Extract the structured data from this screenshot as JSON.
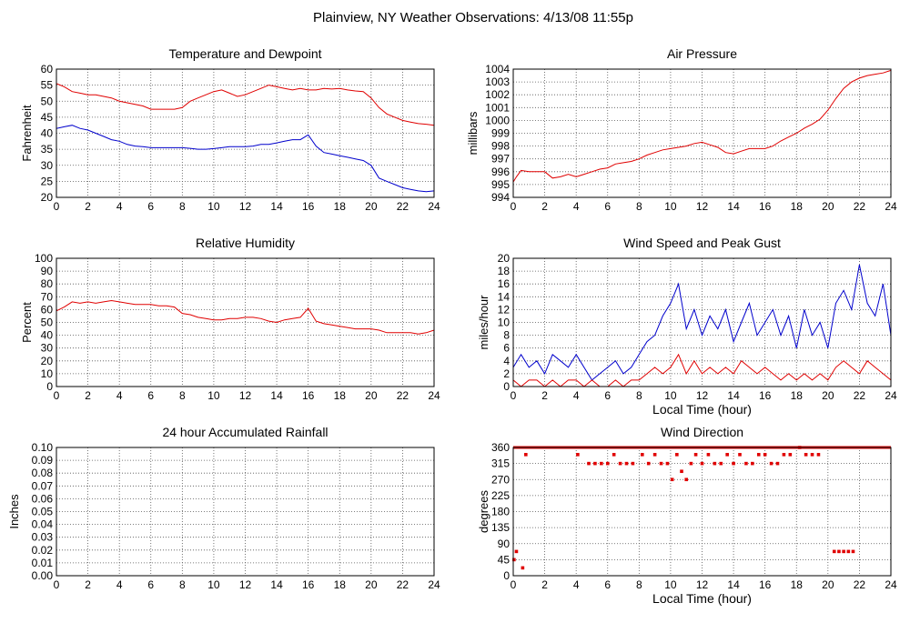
{
  "page": {
    "title": "Plainview, NY Weather Observations: 4/13/08 11:55p"
  },
  "colors": {
    "red": "#e00000",
    "blue": "#0000cc",
    "grid": "#555555",
    "frame": "#000000"
  },
  "chart_data": [
    {
      "id": "temp",
      "type": "line",
      "title": "Temperature and Dewpoint",
      "xlabel": "",
      "ylabel": "Fahrenheit",
      "xlim": [
        0,
        24
      ],
      "ylim": [
        20,
        60
      ],
      "x_ticks": [
        "0",
        "2",
        "4",
        "6",
        "8",
        "10",
        "12",
        "14",
        "16",
        "18",
        "20",
        "22",
        "24"
      ],
      "y_ticks": [
        "20",
        "25",
        "30",
        "35",
        "40",
        "45",
        "50",
        "55",
        "60"
      ],
      "grid": true,
      "series": [
        {
          "color": "red",
          "x": [
            0,
            0.5,
            1,
            1.5,
            2,
            2.5,
            3,
            3.5,
            4,
            4.5,
            5,
            5.5,
            6,
            6.5,
            7,
            7.5,
            8,
            8.5,
            9,
            9.5,
            10,
            10.5,
            11,
            11.5,
            12,
            12.5,
            13,
            13.5,
            14,
            14.5,
            15,
            15.5,
            16,
            16.5,
            17,
            17.5,
            18,
            18.5,
            19,
            19.5,
            20,
            20.5,
            21,
            21.5,
            22,
            22.5,
            23,
            23.5,
            24
          ],
          "values": [
            55.5,
            54.5,
            53,
            52.5,
            52,
            52,
            51.5,
            51,
            50,
            49.5,
            49,
            48.5,
            47.5,
            47.5,
            47.5,
            47.5,
            48,
            50,
            51,
            52,
            53,
            53.5,
            52.5,
            51.5,
            52,
            53,
            54,
            55,
            54.5,
            54,
            53.5,
            54,
            53.5,
            53.5,
            54,
            53.8,
            54,
            53.5,
            53.2,
            53,
            51,
            48,
            46,
            45,
            44,
            43.5,
            43,
            42.8,
            42.5
          ]
        },
        {
          "color": "blue",
          "x": [
            0,
            0.5,
            1,
            1.5,
            2,
            2.5,
            3,
            3.5,
            4,
            4.5,
            5,
            5.5,
            6,
            6.5,
            7,
            7.5,
            8,
            8.5,
            9,
            9.5,
            10,
            10.5,
            11,
            11.5,
            12,
            12.5,
            13,
            13.5,
            14,
            14.5,
            15,
            15.5,
            16,
            16.5,
            17,
            17.5,
            18,
            18.5,
            19,
            19.5,
            20,
            20.5,
            21,
            21.5,
            22,
            22.5,
            23,
            23.5,
            24
          ],
          "values": [
            41.5,
            42,
            42.5,
            41.5,
            41,
            40,
            39,
            38,
            37.5,
            36.5,
            36,
            35.8,
            35.5,
            35.5,
            35.5,
            35.5,
            35.5,
            35.3,
            35,
            35,
            35.2,
            35.5,
            35.8,
            35.8,
            35.8,
            36,
            36.5,
            36.5,
            37,
            37.5,
            38,
            38,
            39.5,
            36,
            34,
            33.5,
            33,
            32.5,
            32,
            31.5,
            30,
            26,
            25,
            24,
            23,
            22.5,
            22,
            21.8,
            22
          ]
        }
      ]
    },
    {
      "id": "pressure",
      "type": "line",
      "title": "Air Pressure",
      "xlabel": "",
      "ylabel": "millibars",
      "xlim": [
        0,
        24
      ],
      "ylim": [
        994,
        1004
      ],
      "x_ticks": [
        "0",
        "2",
        "4",
        "6",
        "8",
        "10",
        "12",
        "14",
        "16",
        "18",
        "20",
        "22",
        "24"
      ],
      "y_ticks": [
        "994",
        "995",
        "996",
        "997",
        "998",
        "999",
        "1000",
        "1001",
        "1002",
        "1003",
        "1004"
      ],
      "grid": true,
      "series": [
        {
          "color": "red",
          "x": [
            0,
            0.2,
            0.5,
            1,
            1.5,
            2,
            2.5,
            3,
            3.5,
            4,
            4.5,
            5,
            5.5,
            6,
            6.5,
            7,
            7.5,
            8,
            8.5,
            9,
            9.5,
            10,
            10.5,
            11,
            11.5,
            12,
            12.5,
            13,
            13.5,
            14,
            14.5,
            15,
            15.5,
            16,
            16.5,
            17,
            17.5,
            18,
            18.5,
            19,
            19.5,
            20,
            20.5,
            21,
            21.5,
            22,
            22.5,
            23,
            23.5,
            24
          ],
          "values": [
            995.2,
            995.6,
            996.1,
            996,
            996,
            996,
            995.5,
            995.6,
            995.8,
            995.6,
            995.8,
            996,
            996.2,
            996.3,
            996.6,
            996.7,
            996.8,
            997,
            997.3,
            997.5,
            997.7,
            997.8,
            997.9,
            998,
            998.2,
            998.3,
            998.1,
            997.9,
            997.5,
            997.4,
            997.6,
            997.8,
            997.8,
            997.8,
            998,
            998.4,
            998.7,
            999,
            999.4,
            999.7,
            1000.1,
            1000.8,
            1001.7,
            1002.5,
            1003,
            1003.3,
            1003.5,
            1003.6,
            1003.7,
            1003.9
          ]
        }
      ]
    },
    {
      "id": "humidity",
      "type": "line",
      "title": "Relative Humidity",
      "xlabel": "",
      "ylabel": "Percent",
      "xlim": [
        0,
        24
      ],
      "ylim": [
        0,
        100
      ],
      "x_ticks": [
        "0",
        "2",
        "4",
        "6",
        "8",
        "10",
        "12",
        "14",
        "16",
        "18",
        "20",
        "22",
        "24"
      ],
      "y_ticks": [
        "0",
        "10",
        "20",
        "30",
        "40",
        "50",
        "60",
        "70",
        "80",
        "90",
        "100"
      ],
      "grid": true,
      "series": [
        {
          "color": "red",
          "x": [
            0,
            0.5,
            1,
            1.5,
            2,
            2.5,
            3,
            3.5,
            4,
            4.5,
            5,
            5.5,
            6,
            6.5,
            7,
            7.5,
            8,
            8.5,
            9,
            9.5,
            10,
            10.5,
            11,
            11.5,
            12,
            12.5,
            13,
            13.5,
            14,
            14.5,
            15,
            15.5,
            16,
            16.5,
            17,
            17.5,
            18,
            18.5,
            19,
            19.5,
            20,
            20.5,
            21,
            21.5,
            22,
            22.5,
            23,
            23.5,
            24
          ],
          "values": [
            59,
            62,
            66,
            65,
            66,
            65,
            66,
            67,
            66,
            65,
            64,
            64,
            64,
            63,
            63,
            62,
            57,
            56,
            54,
            53,
            52,
            52,
            53,
            53,
            54,
            54,
            53,
            51,
            50,
            52,
            53,
            54,
            61,
            51,
            49,
            48,
            47,
            46,
            45,
            45,
            45,
            44,
            42,
            42,
            42,
            42,
            41,
            42,
            44
          ]
        }
      ]
    },
    {
      "id": "wind",
      "type": "line",
      "title": "Wind Speed and Peak Gust",
      "xlabel": "Local Time (hour)",
      "ylabel": "miles/hour",
      "xlim": [
        0,
        24
      ],
      "ylim": [
        0,
        20
      ],
      "x_ticks": [
        "0",
        "2",
        "4",
        "6",
        "8",
        "10",
        "12",
        "14",
        "16",
        "18",
        "20",
        "22",
        "24"
      ],
      "y_ticks": [
        "0",
        "2",
        "4",
        "6",
        "8",
        "10",
        "12",
        "14",
        "16",
        "18",
        "20"
      ],
      "grid": true,
      "series": [
        {
          "color": "blue",
          "x": [
            0,
            0.5,
            1,
            1.5,
            2,
            2.5,
            3,
            3.5,
            4,
            4.5,
            5,
            5.5,
            6,
            6.5,
            7,
            7.5,
            8,
            8.5,
            9,
            9.5,
            10,
            10.5,
            11,
            11.5,
            12,
            12.5,
            13,
            13.5,
            14,
            14.5,
            15,
            15.5,
            16,
            16.5,
            17,
            17.5,
            18,
            18.5,
            19,
            19.5,
            20,
            20.5,
            21,
            21.5,
            22,
            22.5,
            23,
            23.5,
            24
          ],
          "values": [
            3,
            5,
            3,
            4,
            2,
            5,
            4,
            3,
            5,
            3,
            1,
            2,
            3,
            4,
            2,
            3,
            5,
            7,
            8,
            11,
            13,
            16,
            9,
            12,
            8,
            11,
            9,
            12,
            7,
            10,
            13,
            8,
            10,
            12,
            8,
            11,
            6,
            12,
            8,
            10,
            6,
            13,
            15,
            12,
            19,
            13,
            11,
            16,
            8
          ]
        },
        {
          "color": "red",
          "x": [
            0,
            0.5,
            1,
            1.5,
            2,
            2.5,
            3,
            3.5,
            4,
            4.5,
            5,
            5.5,
            6,
            6.5,
            7,
            7.5,
            8,
            8.5,
            9,
            9.5,
            10,
            10.5,
            11,
            11.5,
            12,
            12.5,
            13,
            13.5,
            14,
            14.5,
            15,
            15.5,
            16,
            16.5,
            17,
            17.5,
            18,
            18.5,
            19,
            19.5,
            20,
            20.5,
            21,
            21.5,
            22,
            22.5,
            23,
            23.5,
            24
          ],
          "values": [
            1,
            0,
            1,
            1,
            0,
            1,
            0,
            1,
            1,
            0,
            1,
            0,
            0,
            1,
            0,
            1,
            1,
            2,
            3,
            2,
            3,
            5,
            2,
            4,
            2,
            3,
            2,
            3,
            2,
            4,
            3,
            2,
            3,
            2,
            1,
            2,
            1,
            2,
            1,
            2,
            1,
            3,
            4,
            3,
            2,
            4,
            3,
            2,
            1
          ]
        }
      ]
    },
    {
      "id": "rain",
      "type": "line",
      "title": "24 hour Accumulated Rainfall",
      "xlabel": "",
      "ylabel": "Inches",
      "xlim": [
        0,
        24
      ],
      "ylim": [
        0,
        0.1
      ],
      "x_ticks": [
        "0",
        "2",
        "4",
        "6",
        "8",
        "10",
        "12",
        "14",
        "16",
        "18",
        "20",
        "22",
        "24"
      ],
      "y_ticks": [
        "0.00",
        "0.01",
        "0.02",
        "0.03",
        "0.04",
        "0.05",
        "0.06",
        "0.07",
        "0.08",
        "0.09",
        "0.10"
      ],
      "grid": true,
      "series": [
        {
          "color": "red",
          "x": [
            0,
            24
          ],
          "values": [
            0,
            0
          ]
        }
      ]
    },
    {
      "id": "direction",
      "type": "scatter",
      "title": "Wind Direction",
      "xlabel": "Local Time (hour)",
      "ylabel": "degrees",
      "xlim": [
        0,
        24
      ],
      "ylim": [
        0,
        360
      ],
      "x_ticks": [
        "0",
        "2",
        "4",
        "6",
        "8",
        "10",
        "12",
        "14",
        "16",
        "18",
        "20",
        "22",
        "24"
      ],
      "y_ticks": [
        "0",
        "45",
        "90",
        "135",
        "180",
        "225",
        "270",
        "315",
        "360"
      ],
      "grid": true,
      "series": [
        {
          "color": "red",
          "x": [
            0.05,
            0.2,
            0.6,
            0.8,
            4.1,
            4.8,
            5.2,
            5.6,
            6,
            6.4,
            6.8,
            7.2,
            7.6,
            8.2,
            8.6,
            9,
            9.4,
            9.8,
            10.1,
            10.4,
            10.7,
            11,
            11.3,
            11.6,
            12,
            12.4,
            12.8,
            13.2,
            13.6,
            14,
            14.4,
            14.8,
            15.2,
            15.6,
            16,
            16.4,
            16.8,
            17.2,
            17.6,
            18.2,
            18.6,
            19,
            19.4,
            20.4,
            20.7,
            21,
            21.3,
            21.6
          ],
          "values": [
            45,
            68,
            22,
            340,
            340,
            315,
            315,
            315,
            315,
            340,
            315,
            315,
            315,
            340,
            315,
            340,
            315,
            315,
            270,
            340,
            293,
            270,
            315,
            340,
            315,
            340,
            315,
            315,
            340,
            315,
            340,
            315,
            315,
            340,
            340,
            315,
            315,
            340,
            340,
            360,
            340,
            340,
            340,
            68,
            68,
            68,
            68,
            68
          ]
        }
      ]
    }
  ]
}
